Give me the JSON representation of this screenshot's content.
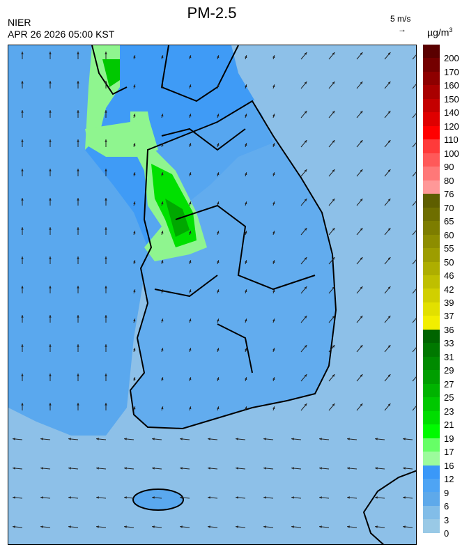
{
  "title": "PM-2.5",
  "agency": "NIER",
  "datetime": "APR 26 2026 05:00 KST",
  "wind_scale": {
    "label": "5 m/s",
    "arrow": "→"
  },
  "unit": {
    "base": "µg/m",
    "exp": "3"
  },
  "colorbar": {
    "labels": [
      "200",
      "170",
      "160",
      "150",
      "140",
      "120",
      "110",
      "100",
      "90",
      "80",
      "76",
      "70",
      "65",
      "60",
      "55",
      "50",
      "46",
      "42",
      "39",
      "37",
      "36",
      "33",
      "31",
      "29",
      "27",
      "25",
      "23",
      "21",
      "19",
      "17",
      "16",
      "12",
      "9",
      "6",
      "3",
      "0"
    ],
    "colors": [
      "#5a0000",
      "#740000",
      "#8e0000",
      "#a90000",
      "#c40000",
      "#df0000",
      "#ff0000",
      "#ff3a3a",
      "#ff5959",
      "#ff7878",
      "#ff9898",
      "#5e5e00",
      "#6e6e00",
      "#7d7d00",
      "#8d8d00",
      "#9d9d00",
      "#aeae00",
      "#bfbf00",
      "#d1cf00",
      "#e2e000",
      "#f2ee00",
      "#006400",
      "#007800",
      "#008a00",
      "#009e00",
      "#00b300",
      "#00c800",
      "#00dd00",
      "#00fa00",
      "#66ff66",
      "#9cfb9c",
      "#3a98f8",
      "#4ea4f4",
      "#5ea9ea",
      "#82bde8",
      "#99c9e6"
    ]
  },
  "map": {
    "colors": {
      "sea_light": "#8dc0e8",
      "mid_blue": "#5aa8ee",
      "dark_blue": "#3f9bf6",
      "green_light": "#8ff58f",
      "green": "#00e000",
      "green_dark": "#00a800",
      "boundary": "#000000",
      "district": "#b8c8d8"
    }
  }
}
